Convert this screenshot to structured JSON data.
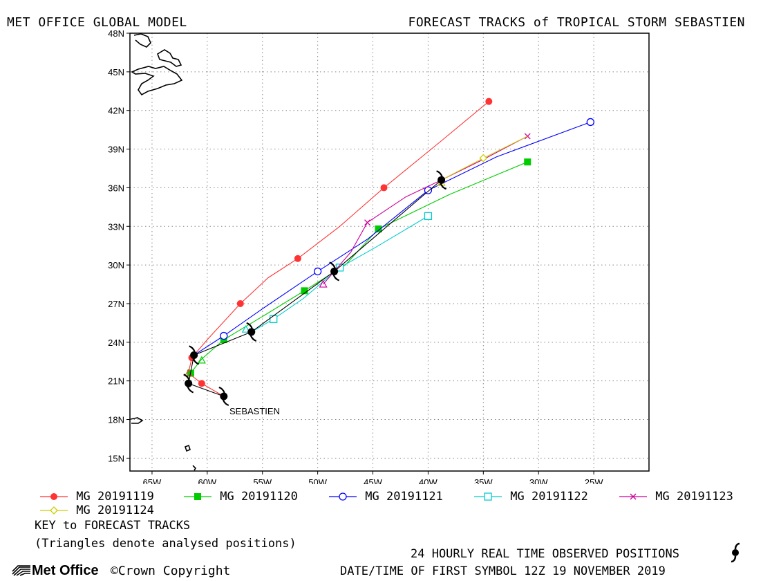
{
  "header": {
    "left_title": "MET OFFICE GLOBAL MODEL",
    "right_title": "FORECAST TRACKS of TROPICAL STORM SEBASTIEN"
  },
  "map": {
    "lon_range": [
      -67,
      -20
    ],
    "lat_range": [
      14,
      48
    ],
    "lon_ticks": [
      {
        "value": -65,
        "label": "65W"
      },
      {
        "value": -60,
        "label": "60W"
      },
      {
        "value": -55,
        "label": "55W"
      },
      {
        "value": -50,
        "label": "50W"
      },
      {
        "value": -45,
        "label": "45W"
      },
      {
        "value": -40,
        "label": "40W"
      },
      {
        "value": -35,
        "label": "35W"
      },
      {
        "value": -30,
        "label": "30W"
      },
      {
        "value": -25,
        "label": "25W"
      }
    ],
    "lat_ticks": [
      {
        "value": 15,
        "label": "15N"
      },
      {
        "value": 18,
        "label": "18N"
      },
      {
        "value": 21,
        "label": "21N"
      },
      {
        "value": 24,
        "label": "24N"
      },
      {
        "value": 27,
        "label": "27N"
      },
      {
        "value": 30,
        "label": "30N"
      },
      {
        "value": 33,
        "label": "33N"
      },
      {
        "value": 36,
        "label": "36N"
      },
      {
        "value": 39,
        "label": "39N"
      },
      {
        "value": 42,
        "label": "42N"
      },
      {
        "value": 45,
        "label": "45N"
      },
      {
        "value": 48,
        "label": "48N"
      }
    ],
    "grid": "dotted",
    "storm_label": "SEBASTIEN"
  },
  "chart_data": {
    "type": "line",
    "observed_positions": {
      "points": [
        [
          -58.5,
          19.8
        ],
        [
          -61.7,
          20.8
        ],
        [
          -61.2,
          23.0
        ],
        [
          -56.0,
          24.8
        ],
        [
          -48.5,
          29.5
        ],
        [
          -38.8,
          36.6
        ]
      ],
      "color": "#000000"
    },
    "series": [
      {
        "name": "MG 20191119",
        "color": "#ff3333",
        "marker": "filled-circle",
        "marker_every": 2,
        "points": [
          [
            -58.5,
            19.8
          ],
          [
            -60.5,
            20.8
          ],
          [
            -61.7,
            21.6
          ],
          [
            -61.4,
            22.8
          ],
          [
            -60.0,
            24.2
          ],
          [
            -57.0,
            27.0
          ],
          [
            -54.5,
            29.0
          ],
          [
            -51.8,
            30.5
          ],
          [
            -48.0,
            33.0
          ],
          [
            -44.0,
            36.0
          ],
          [
            -39.0,
            39.5
          ],
          [
            -34.5,
            42.7
          ]
        ]
      },
      {
        "name": "MG 20191120",
        "color": "#00cc00",
        "marker": "filled-square",
        "marker_every": 2,
        "points": [
          [
            -61.7,
            20.8
          ],
          [
            -61.5,
            21.6
          ],
          [
            -60.5,
            22.7
          ],
          [
            -58.5,
            24.2
          ],
          [
            -55.0,
            26.0
          ],
          [
            -51.2,
            28.0
          ],
          [
            -47.5,
            30.0
          ],
          [
            -44.5,
            32.8
          ],
          [
            -38.0,
            35.5
          ],
          [
            -31.0,
            38.0
          ]
        ]
      },
      {
        "name": "MG 20191121",
        "color": "#0000ff",
        "marker": "open-circle",
        "marker_every": 2,
        "points": [
          [
            -61.2,
            23.0
          ],
          [
            -58.5,
            24.5
          ],
          [
            -55.0,
            26.6
          ],
          [
            -50.0,
            29.5
          ],
          [
            -45.5,
            32.0
          ],
          [
            -40.0,
            35.8
          ],
          [
            -33.8,
            38.4
          ],
          [
            -25.3,
            41.1
          ]
        ]
      },
      {
        "name": "MG 20191122",
        "color": "#00cccc",
        "marker": "open-square",
        "marker_every": 2,
        "points": [
          [
            -56.0,
            24.8
          ],
          [
            -54.0,
            25.8
          ],
          [
            -51.3,
            27.4
          ],
          [
            -48.0,
            29.8
          ],
          [
            -44.7,
            31.4
          ],
          [
            -40.0,
            33.8
          ]
        ]
      },
      {
        "name": "MG 20191123",
        "color": "#cc0099",
        "marker": "cross",
        "marker_every": 2,
        "points": [
          [
            -49.5,
            28.5
          ],
          [
            -48.5,
            29.5
          ],
          [
            -47.0,
            31.0
          ],
          [
            -45.5,
            33.3
          ],
          [
            -42.0,
            35.3
          ],
          [
            -38.8,
            36.6
          ],
          [
            -35.0,
            38.2
          ],
          [
            -31.0,
            40.0
          ]
        ]
      },
      {
        "name": "MG 20191124",
        "color": "#cccc00",
        "marker": "diamond",
        "marker_every": 2,
        "points": [
          [
            -38.8,
            36.6
          ],
          [
            -35.0,
            38.3
          ],
          [
            -31.0,
            40.0
          ]
        ]
      }
    ],
    "analysed_positions": [
      {
        "series": "MG 20191119",
        "point": [
          -61.7,
          21.6
        ]
      },
      {
        "series": "MG 20191120",
        "point": [
          -60.5,
          22.6
        ]
      },
      {
        "series": "MG 20191122",
        "point": [
          -56.5,
          25.0
        ]
      },
      {
        "series": "MG 20191123",
        "point": [
          -49.5,
          28.5
        ]
      },
      {
        "series": "MG 20191124",
        "point": [
          -38.8,
          36.4
        ]
      }
    ]
  },
  "legend": {
    "items": [
      {
        "label": "MG 20191119",
        "color": "#ff3333",
        "marker": "filled-circle"
      },
      {
        "label": "MG 20191120",
        "color": "#00cc00",
        "marker": "filled-square"
      },
      {
        "label": "MG 20191121",
        "color": "#0000ff",
        "marker": "open-circle"
      },
      {
        "label": "MG 20191122",
        "color": "#00cccc",
        "marker": "open-square"
      },
      {
        "label": "MG 20191123",
        "color": "#cc0099",
        "marker": "cross"
      },
      {
        "label": "MG 20191124",
        "color": "#cccc00",
        "marker": "diamond"
      }
    ],
    "key_title": "KEY to FORECAST TRACKS",
    "key_note": "(Triangles denote analysed positions)"
  },
  "footer": {
    "observed_label": "24 HOURLY REAL TIME OBSERVED POSITIONS",
    "datetime_label": "DATE/TIME OF FIRST SYMBOL 12Z 19 NOVEMBER 2019",
    "brand": "Met Office",
    "copyright": "©Crown Copyright"
  }
}
